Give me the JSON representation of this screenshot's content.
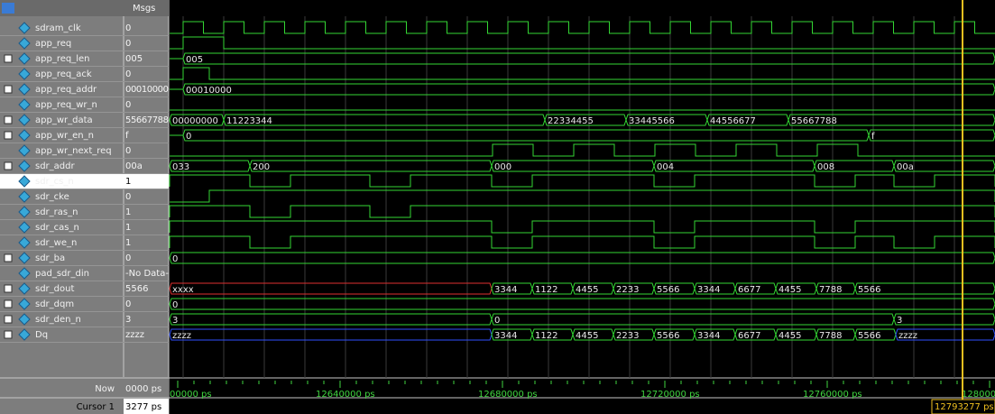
{
  "header": {
    "msgs": "Msgs"
  },
  "signals": [
    {
      "name": "sdram_clk",
      "value": "0"
    },
    {
      "name": "app_req",
      "value": "0"
    },
    {
      "name": "app_req_len",
      "value": "005",
      "waves": [
        "005"
      ]
    },
    {
      "name": "app_req_ack",
      "value": "0"
    },
    {
      "name": "app_req_addr",
      "value": "00010000",
      "waves": [
        "00010000"
      ]
    },
    {
      "name": "app_req_wr_n",
      "value": "0"
    },
    {
      "name": "app_wr_data",
      "value": "55667788",
      "waves": [
        "00000000",
        "11223344",
        "22334455",
        "33445566",
        "44556677",
        "55667788"
      ]
    },
    {
      "name": "app_wr_en_n",
      "value": "f",
      "waves": [
        "0",
        "f"
      ]
    },
    {
      "name": "app_wr_next_req",
      "value": "0"
    },
    {
      "name": "sdr_addr",
      "value": "00a",
      "waves": [
        "033",
        "200",
        "000",
        "004",
        "008",
        "00a"
      ]
    },
    {
      "name": "sdr_cs_n",
      "value": "1"
    },
    {
      "name": "sdr_cke",
      "value": "0"
    },
    {
      "name": "sdr_ras_n",
      "value": "1"
    },
    {
      "name": "sdr_cas_n",
      "value": "1"
    },
    {
      "name": "sdr_we_n",
      "value": "1"
    },
    {
      "name": "sdr_ba",
      "value": "0",
      "waves": [
        "0"
      ]
    },
    {
      "name": "pad_sdr_din",
      "value": "-No Data-"
    },
    {
      "name": "sdr_dout",
      "value": "5566",
      "waves": [
        "xxxx",
        "3344",
        "1122",
        "4455",
        "2233",
        "5566",
        "3344",
        "6677",
        "4455",
        "7788",
        "5566"
      ]
    },
    {
      "name": "sdr_dqm",
      "value": "0",
      "waves": [
        "0"
      ]
    },
    {
      "name": "sdr_den_n",
      "value": "3",
      "waves": [
        "3",
        "0",
        "3"
      ]
    },
    {
      "name": "Dq",
      "value": "zzzz",
      "waves": [
        "zzzz",
        "3344",
        "1122",
        "4455",
        "2233",
        "5566",
        "3344",
        "6677",
        "4455",
        "7788",
        "5566",
        "zzzz"
      ]
    }
  ],
  "footer": {
    "now_label": "Now",
    "now_value": "0000 ps",
    "cursor_label": "Cursor 1",
    "cursor_value": "3277 ps",
    "cursor_time": "12793277 ps",
    "timeline": [
      "00000 ps",
      "12640000 ps",
      "12680000 ps",
      "12720000 ps",
      "12760000 ps",
      "128000"
    ]
  }
}
